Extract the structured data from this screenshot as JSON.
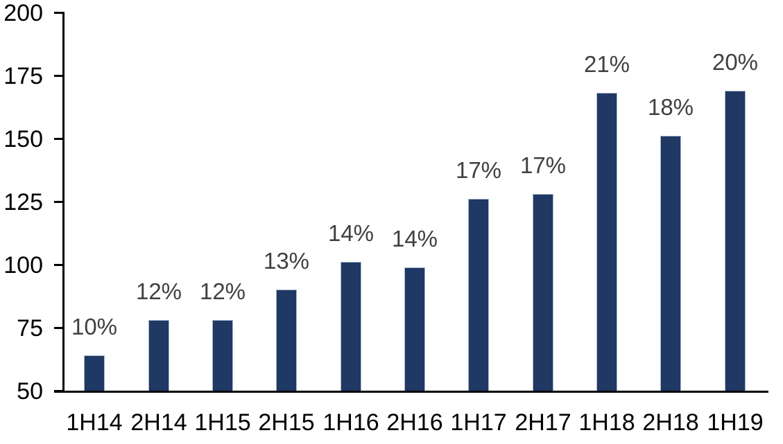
{
  "chart_data": {
    "type": "bar",
    "categories": [
      "1H14",
      "2H14",
      "1H15",
      "2H15",
      "1H16",
      "2H16",
      "1H17",
      "2H17",
      "1H18",
      "2H18",
      "1H19"
    ],
    "values": [
      64,
      78,
      78,
      90,
      101,
      99,
      126,
      128,
      168,
      151,
      169
    ],
    "bar_labels": [
      "10%",
      "12%",
      "12%",
      "13%",
      "14%",
      "14%",
      "17%",
      "17%",
      "21%",
      "18%",
      "20%"
    ],
    "title": "",
    "xlabel": "",
    "ylabel": "",
    "ylim": [
      50,
      200
    ],
    "yticks": [
      50,
      75,
      100,
      125,
      150,
      175,
      200
    ],
    "grid": false,
    "legend": false,
    "colors": {
      "bar_fill": "#1f3864",
      "bar_border": "#a9b7cd",
      "data_label": "#404040",
      "axis_text": "#000000",
      "axis_line": "#000000",
      "background": "#ffffff"
    }
  }
}
